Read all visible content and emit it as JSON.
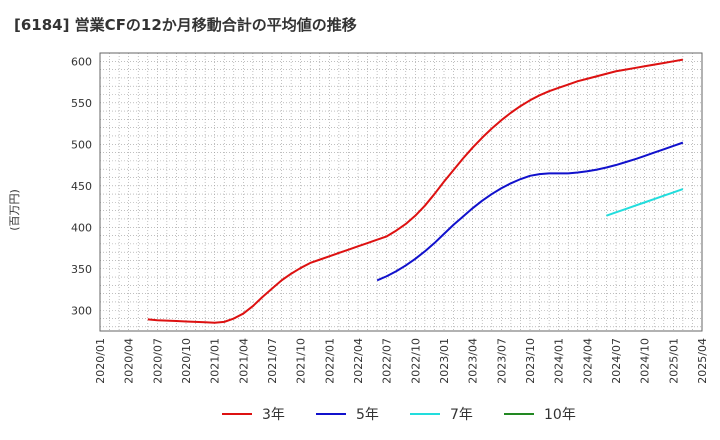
{
  "chart_data": {
    "type": "line",
    "title": "[6184]  営業CFの12か月移動合計の平均値の推移",
    "ylabel": "(百万円)",
    "xlabel": "",
    "ylim": [
      275,
      610
    ],
    "yticks": [
      300,
      350,
      400,
      450,
      500,
      550,
      600
    ],
    "xlim": [
      "2020-01",
      "2025-04"
    ],
    "xticks": [
      "2020/01",
      "2020/04",
      "2020/07",
      "2020/10",
      "2021/01",
      "2021/04",
      "2021/07",
      "2021/10",
      "2022/01",
      "2022/04",
      "2022/07",
      "2022/10",
      "2023/01",
      "2023/04",
      "2023/07",
      "2023/10",
      "2024/01",
      "2024/04",
      "2024/07",
      "2024/10",
      "2025/01",
      "2025/04"
    ],
    "grid": true,
    "legend_position": "bottom",
    "series": [
      {
        "name": "3年",
        "color": "#dd1111",
        "points": [
          [
            "2020-06",
            289
          ],
          [
            "2020-07",
            288
          ],
          [
            "2020-08",
            287.5
          ],
          [
            "2020-09",
            287
          ],
          [
            "2020-10",
            286.5
          ],
          [
            "2020-11",
            286
          ],
          [
            "2020-12",
            285.5
          ],
          [
            "2021-01",
            285
          ],
          [
            "2021-02",
            286
          ],
          [
            "2021-03",
            290
          ],
          [
            "2021-04",
            296
          ],
          [
            "2021-05",
            305
          ],
          [
            "2021-06",
            316
          ],
          [
            "2021-07",
            326
          ],
          [
            "2021-08",
            336
          ],
          [
            "2021-09",
            344
          ],
          [
            "2021-10",
            351
          ],
          [
            "2021-11",
            357
          ],
          [
            "2021-12",
            361
          ],
          [
            "2022-01",
            365
          ],
          [
            "2022-02",
            369
          ],
          [
            "2022-03",
            373
          ],
          [
            "2022-04",
            377
          ],
          [
            "2022-05",
            381
          ],
          [
            "2022-06",
            385
          ],
          [
            "2022-07",
            389
          ],
          [
            "2022-08",
            396
          ],
          [
            "2022-09",
            404
          ],
          [
            "2022-10",
            414
          ],
          [
            "2022-11",
            426
          ],
          [
            "2022-12",
            440
          ],
          [
            "2023-01",
            455
          ],
          [
            "2023-02",
            469
          ],
          [
            "2023-03",
            483
          ],
          [
            "2023-04",
            496
          ],
          [
            "2023-05",
            508
          ],
          [
            "2023-06",
            519
          ],
          [
            "2023-07",
            529
          ],
          [
            "2023-08",
            538
          ],
          [
            "2023-09",
            546
          ],
          [
            "2023-10",
            553
          ],
          [
            "2023-11",
            559
          ],
          [
            "2023-12",
            564
          ],
          [
            "2024-01",
            568
          ],
          [
            "2024-02",
            572
          ],
          [
            "2024-03",
            576
          ],
          [
            "2024-04",
            579
          ],
          [
            "2024-05",
            582
          ],
          [
            "2024-06",
            585
          ],
          [
            "2024-07",
            588
          ],
          [
            "2024-08",
            590
          ],
          [
            "2024-09",
            592
          ],
          [
            "2024-10",
            594
          ],
          [
            "2024-11",
            596
          ],
          [
            "2024-12",
            598
          ],
          [
            "2025-01",
            600
          ],
          [
            "2025-02",
            602
          ]
        ]
      },
      {
        "name": "5年",
        "color": "#1111cc",
        "points": [
          [
            "2022-06",
            336
          ],
          [
            "2022-07",
            341
          ],
          [
            "2022-08",
            347
          ],
          [
            "2022-09",
            354
          ],
          [
            "2022-10",
            362
          ],
          [
            "2022-11",
            371
          ],
          [
            "2022-12",
            381
          ],
          [
            "2023-01",
            392
          ],
          [
            "2023-02",
            403
          ],
          [
            "2023-03",
            413
          ],
          [
            "2023-04",
            423
          ],
          [
            "2023-05",
            432
          ],
          [
            "2023-06",
            440
          ],
          [
            "2023-07",
            447
          ],
          [
            "2023-08",
            453
          ],
          [
            "2023-09",
            458
          ],
          [
            "2023-10",
            462
          ],
          [
            "2023-11",
            464
          ],
          [
            "2023-12",
            465
          ],
          [
            "2024-01",
            465
          ],
          [
            "2024-02",
            465
          ],
          [
            "2024-03",
            466
          ],
          [
            "2024-04",
            467.5
          ],
          [
            "2024-05",
            469.5
          ],
          [
            "2024-06",
            472
          ],
          [
            "2024-07",
            475
          ],
          [
            "2024-08",
            478.5
          ],
          [
            "2024-09",
            482
          ],
          [
            "2024-10",
            486
          ],
          [
            "2024-11",
            490
          ],
          [
            "2024-12",
            494
          ],
          [
            "2025-01",
            498
          ],
          [
            "2025-02",
            502
          ]
        ]
      },
      {
        "name": "7年",
        "color": "#22dddd",
        "points": [
          [
            "2024-06",
            414
          ],
          [
            "2024-07",
            418
          ],
          [
            "2024-08",
            422
          ],
          [
            "2024-09",
            426
          ],
          [
            "2024-10",
            430
          ],
          [
            "2024-11",
            434
          ],
          [
            "2024-12",
            438
          ],
          [
            "2025-01",
            442
          ],
          [
            "2025-02",
            446
          ]
        ]
      },
      {
        "name": "10年",
        "color": "#228822",
        "points": []
      }
    ]
  }
}
